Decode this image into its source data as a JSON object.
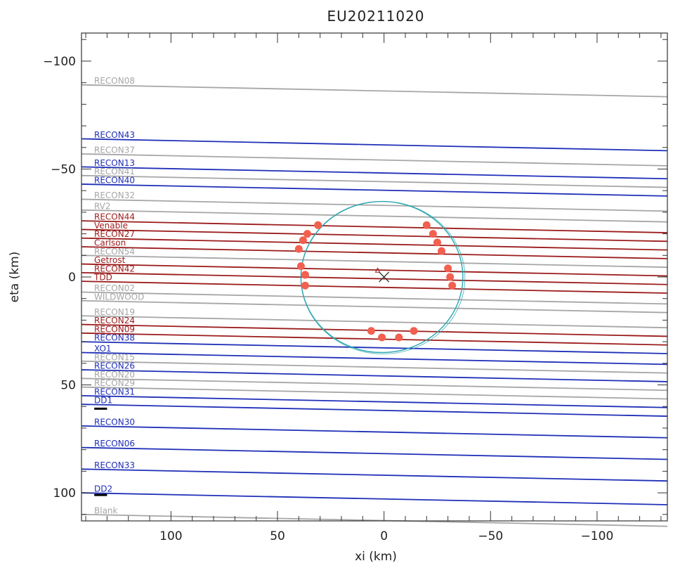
{
  "chart_data": {
    "type": "line",
    "title": "EU20211020",
    "xlabel": "xi (km)",
    "ylabel": "eta (km)",
    "xlim": [
      142,
      -133
    ],
    "ylim": [
      -113,
      113
    ],
    "x_reversed": true,
    "y_reversed": true,
    "x_ticks": [
      100,
      50,
      0,
      -50,
      -100
    ],
    "x_tick_labels": [
      "100",
      "50",
      "0",
      "−50",
      "−100"
    ],
    "y_ticks": [
      -100,
      -50,
      0,
      50,
      100
    ],
    "y_tick_labels": [
      "−100",
      "−50",
      "0",
      "50",
      "100"
    ],
    "colors": {
      "positive": "#9b1b1b",
      "negative": "#1f2fb8",
      "cloud": "#a6a6a6",
      "point": "#f2604f",
      "limb": "#2aa6b0",
      "frame": "#333333",
      "center": "#333333",
      "bar": "#000000"
    },
    "chord_slope": 0.02,
    "chords": [
      {
        "name": "RECON08",
        "eta": -89,
        "status": "cloud"
      },
      {
        "name": "RECON43",
        "eta": -64,
        "status": "negative"
      },
      {
        "name": "RECON37",
        "eta": -57,
        "status": "cloud"
      },
      {
        "name": "RECON13",
        "eta": -51,
        "status": "negative"
      },
      {
        "name": "RECON41",
        "eta": -47,
        "status": "cloud"
      },
      {
        "name": "RECON40",
        "eta": -43,
        "status": "negative"
      },
      {
        "name": "RECON32",
        "eta": -36,
        "status": "cloud"
      },
      {
        "name": "RV2",
        "eta": -31,
        "status": "cloud"
      },
      {
        "name": "RECON44",
        "eta": -26,
        "status": "positive"
      },
      {
        "name": "Venable",
        "eta": -22,
        "status": "positive"
      },
      {
        "name": "RECON27",
        "eta": -18,
        "status": "positive"
      },
      {
        "name": "Carlson",
        "eta": -14,
        "status": "positive"
      },
      {
        "name": "RECON54",
        "eta": -10,
        "status": "cloud"
      },
      {
        "name": "Getrost",
        "eta": -6,
        "status": "positive"
      },
      {
        "name": "RECON42",
        "eta": -2,
        "status": "positive"
      },
      {
        "name": "TDD",
        "eta": 2,
        "status": "positive"
      },
      {
        "name": "RECON02",
        "eta": 7,
        "status": "cloud"
      },
      {
        "name": "WILDWOOD",
        "eta": 11,
        "status": "cloud"
      },
      {
        "name": "RECON19",
        "eta": 18,
        "status": "cloud"
      },
      {
        "name": "RECON24",
        "eta": 22,
        "status": "positive"
      },
      {
        "name": "RECON09",
        "eta": 26,
        "status": "positive"
      },
      {
        "name": "RECON38",
        "eta": 30,
        "status": "negative"
      },
      {
        "name": "XO1",
        "eta": 35,
        "status": "negative"
      },
      {
        "name": "RECON15",
        "eta": 39,
        "status": "cloud"
      },
      {
        "name": "RECON26",
        "eta": 43,
        "status": "negative"
      },
      {
        "name": "RECON20",
        "eta": 47,
        "status": "cloud"
      },
      {
        "name": "RECON29",
        "eta": 51,
        "status": "cloud"
      },
      {
        "name": "RECON31",
        "eta": 55,
        "status": "negative"
      },
      {
        "name": "DD1",
        "eta": 59,
        "status": "negative"
      },
      {
        "name": "RECON30",
        "eta": 69,
        "status": "negative"
      },
      {
        "name": "RECON06",
        "eta": 79,
        "status": "negative"
      },
      {
        "name": "RECON33",
        "eta": 89,
        "status": "negative"
      },
      {
        "name": "DD2",
        "eta": 100,
        "status": "negative"
      },
      {
        "name": "Blank",
        "eta": 110,
        "status": "cloud"
      }
    ],
    "short_bars": [
      {
        "xi_start": 136,
        "xi_end": 130,
        "eta": 61
      },
      {
        "xi_start": 136,
        "xi_end": 130,
        "eta": 101
      }
    ],
    "limb_ellipse": {
      "center_xi": 1,
      "center_eta": 0,
      "semi_major_xi": 38,
      "semi_minor_eta": 35
    },
    "center_mark": {
      "xi": 0,
      "eta": 0
    },
    "triangle_mark": {
      "xi": 3,
      "eta": -3
    },
    "points": [
      {
        "xi": 31,
        "eta": -24
      },
      {
        "xi": 36,
        "eta": -20
      },
      {
        "xi": 38,
        "eta": -17
      },
      {
        "xi": 40,
        "eta": -13
      },
      {
        "xi": 39,
        "eta": -5
      },
      {
        "xi": 37,
        "eta": -1
      },
      {
        "xi": 37,
        "eta": 4
      },
      {
        "xi": -20,
        "eta": -24
      },
      {
        "xi": -23,
        "eta": -20
      },
      {
        "xi": -25,
        "eta": -16
      },
      {
        "xi": -27,
        "eta": -12
      },
      {
        "xi": -30,
        "eta": -4
      },
      {
        "xi": -31,
        "eta": 0
      },
      {
        "xi": -32,
        "eta": 4
      },
      {
        "xi": 6,
        "eta": 25
      },
      {
        "xi": 1,
        "eta": 28
      },
      {
        "xi": -7,
        "eta": 28
      },
      {
        "xi": -14,
        "eta": 25
      }
    ]
  }
}
